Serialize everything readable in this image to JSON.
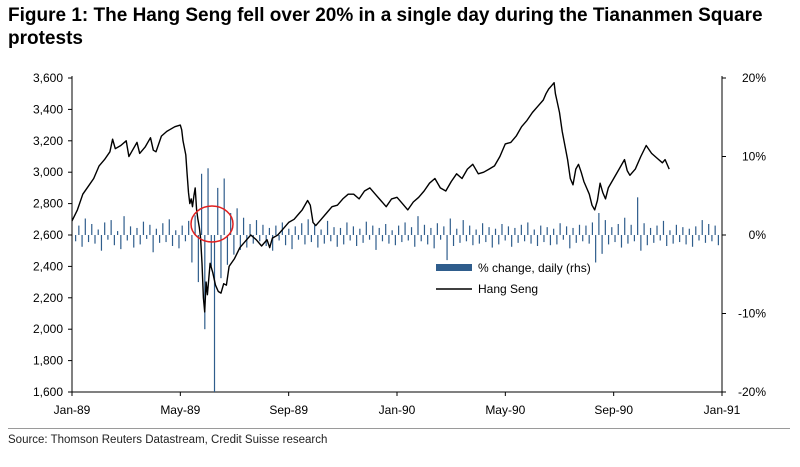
{
  "title": "Figure 1: The Hang Seng fell over 20% in a single day during the Tiananmen Square protests",
  "source": "Source: Thomson Reuters Datastream, Credit Suisse research",
  "colors": {
    "line": "#000000",
    "bars": "#2f5d8c",
    "highlight_circle": "#e02020"
  },
  "chart_data": {
    "type": "line",
    "x_tick_labels": [
      "Jan-89",
      "May-89",
      "Sep-89",
      "Jan-90",
      "May-90",
      "Sep-90",
      "Jan-91"
    ],
    "y_left": {
      "ticks": [
        "3,600",
        "3,400",
        "3,200",
        "3,000",
        "2,800",
        "2,600",
        "2,400",
        "2,200",
        "2,000",
        "1,800",
        "1,600"
      ],
      "range": [
        1600,
        3600
      ]
    },
    "y_right": {
      "ticks": [
        "20%",
        "10%",
        "0%",
        "-10%",
        "-20%"
      ],
      "range": [
        -20,
        20
      ]
    },
    "legend": {
      "bar_label": "% change, daily (rhs)",
      "line_label": "Hang Seng"
    },
    "series": [
      {
        "name": "Hang Seng",
        "axis": "left",
        "points": [
          [
            0.0,
            2690
          ],
          [
            0.2,
            2760
          ],
          [
            0.4,
            2860
          ],
          [
            0.6,
            2910
          ],
          [
            0.8,
            2960
          ],
          [
            1.0,
            3040
          ],
          [
            1.2,
            3080
          ],
          [
            1.4,
            3130
          ],
          [
            1.5,
            3210
          ],
          [
            1.6,
            3150
          ],
          [
            1.8,
            3170
          ],
          [
            2.0,
            3200
          ],
          [
            2.1,
            3100
          ],
          [
            2.2,
            3130
          ],
          [
            2.4,
            3190
          ],
          [
            2.5,
            3120
          ],
          [
            2.7,
            3160
          ],
          [
            2.9,
            3220
          ],
          [
            3.0,
            3140
          ],
          [
            3.1,
            3130
          ],
          [
            3.3,
            3230
          ],
          [
            3.5,
            3260
          ],
          [
            3.6,
            3270
          ],
          [
            3.8,
            3290
          ],
          [
            4.0,
            3300
          ],
          [
            4.05,
            3270
          ],
          [
            4.1,
            3200
          ],
          [
            4.2,
            3110
          ],
          [
            4.25,
            2990
          ],
          [
            4.3,
            2870
          ],
          [
            4.35,
            2800
          ],
          [
            4.4,
            2830
          ],
          [
            4.45,
            2780
          ],
          [
            4.5,
            2850
          ],
          [
            4.55,
            2900
          ],
          [
            4.6,
            2760
          ],
          [
            4.65,
            2700
          ],
          [
            4.7,
            2650
          ],
          [
            4.75,
            2580
          ],
          [
            4.8,
            2420
          ],
          [
            4.85,
            2200
          ],
          [
            4.9,
            2110
          ],
          [
            4.95,
            2300
          ],
          [
            5.0,
            2220
          ],
          [
            5.1,
            2420
          ],
          [
            5.2,
            2360
          ],
          [
            5.3,
            2280
          ],
          [
            5.4,
            2240
          ],
          [
            5.5,
            2230
          ],
          [
            5.6,
            2290
          ],
          [
            5.7,
            2280
          ],
          [
            5.8,
            2400
          ],
          [
            6.0,
            2450
          ],
          [
            6.2,
            2520
          ],
          [
            6.4,
            2560
          ],
          [
            6.6,
            2600
          ],
          [
            6.8,
            2570
          ],
          [
            7.0,
            2530
          ],
          [
            7.2,
            2570
          ],
          [
            7.3,
            2520
          ],
          [
            7.4,
            2580
          ],
          [
            7.6,
            2600
          ],
          [
            7.8,
            2640
          ],
          [
            8.0,
            2680
          ],
          [
            8.2,
            2700
          ],
          [
            8.4,
            2740
          ],
          [
            8.5,
            2760
          ],
          [
            8.7,
            2820
          ],
          [
            8.8,
            2790
          ],
          [
            8.9,
            2680
          ],
          [
            9.0,
            2660
          ],
          [
            9.2,
            2700
          ],
          [
            9.4,
            2740
          ],
          [
            9.6,
            2780
          ],
          [
            9.8,
            2790
          ],
          [
            10.0,
            2830
          ],
          [
            10.2,
            2860
          ],
          [
            10.4,
            2860
          ],
          [
            10.6,
            2830
          ],
          [
            10.8,
            2880
          ],
          [
            11.0,
            2900
          ],
          [
            11.2,
            2860
          ],
          [
            11.4,
            2820
          ],
          [
            11.6,
            2780
          ],
          [
            11.8,
            2830
          ],
          [
            12.0,
            2840
          ],
          [
            12.2,
            2800
          ],
          [
            12.4,
            2760
          ],
          [
            12.6,
            2810
          ],
          [
            12.8,
            2840
          ],
          [
            13.0,
            2880
          ],
          [
            13.2,
            2930
          ],
          [
            13.4,
            2960
          ],
          [
            13.6,
            2900
          ],
          [
            13.8,
            2880
          ],
          [
            14.0,
            2940
          ],
          [
            14.2,
            2990
          ],
          [
            14.4,
            2960
          ],
          [
            14.6,
            3020
          ],
          [
            14.8,
            3050
          ],
          [
            15.0,
            2990
          ],
          [
            15.2,
            3000
          ],
          [
            15.4,
            3020
          ],
          [
            15.6,
            3040
          ],
          [
            15.8,
            3100
          ],
          [
            16.0,
            3180
          ],
          [
            16.2,
            3190
          ],
          [
            16.4,
            3230
          ],
          [
            16.6,
            3290
          ],
          [
            16.8,
            3330
          ],
          [
            17.0,
            3380
          ],
          [
            17.2,
            3420
          ],
          [
            17.4,
            3460
          ],
          [
            17.5,
            3500
          ],
          [
            17.6,
            3530
          ],
          [
            17.7,
            3550
          ],
          [
            17.8,
            3570
          ],
          [
            17.85,
            3500
          ],
          [
            17.9,
            3460
          ],
          [
            18.0,
            3380
          ],
          [
            18.1,
            3260
          ],
          [
            18.2,
            3170
          ],
          [
            18.3,
            3080
          ],
          [
            18.4,
            2960
          ],
          [
            18.5,
            2920
          ],
          [
            18.6,
            3020
          ],
          [
            18.7,
            3050
          ],
          [
            18.8,
            3000
          ],
          [
            18.9,
            2940
          ],
          [
            19.0,
            2900
          ],
          [
            19.1,
            2860
          ],
          [
            19.2,
            2790
          ],
          [
            19.3,
            2760
          ],
          [
            19.4,
            2820
          ],
          [
            19.5,
            2930
          ],
          [
            19.6,
            2870
          ],
          [
            19.7,
            2830
          ],
          [
            19.8,
            2900
          ],
          [
            20.0,
            2960
          ],
          [
            20.2,
            3020
          ],
          [
            20.4,
            3080
          ],
          [
            20.5,
            3010
          ],
          [
            20.6,
            2980
          ],
          [
            20.8,
            3020
          ],
          [
            21.0,
            3100
          ],
          [
            21.2,
            3170
          ],
          [
            21.4,
            3120
          ],
          [
            21.6,
            3090
          ],
          [
            21.8,
            3060
          ],
          [
            21.9,
            3080
          ],
          [
            22.0,
            3040
          ],
          [
            22.05,
            3020
          ]
        ]
      },
      {
        "name": "% change, daily (rhs)",
        "axis": "right",
        "type": "bar",
        "values": [
          -0.8,
          1.2,
          -1.5,
          2.1,
          -0.9,
          1.4,
          -1.1,
          0.7,
          -2.0,
          1.6,
          -0.6,
          1.9,
          -1.3,
          0.5,
          -1.8,
          2.4,
          -0.7,
          1.1,
          -1.6,
          0.9,
          -1.2,
          1.7,
          -0.5,
          1.3,
          -2.2,
          0.8,
          -1.0,
          1.5,
          -0.9,
          2.0,
          -1.4,
          0.6,
          -1.7,
          1.2,
          -0.8,
          1.8,
          -3.5,
          2.5,
          -6.0,
          7.8,
          -12.0,
          8.5,
          -4.0,
          -21.8,
          6.0,
          -5.5,
          7.2,
          -3.8,
          2.8,
          -2.5,
          3.4,
          -1.9,
          2.2,
          -1.6,
          1.4,
          -1.1,
          1.9,
          -0.8,
          1.3,
          -1.4,
          0.9,
          -2.0,
          1.2,
          -0.7,
          1.6,
          -1.3,
          0.8,
          -1.8,
          1.1,
          -0.6,
          1.5,
          -1.2,
          2.0,
          -0.9,
          1.3,
          -1.6,
          0.7,
          -1.1,
          1.8,
          -0.8,
          1.0,
          -1.5,
          0.9,
          -1.2,
          1.6,
          -0.7,
          1.1,
          -1.4,
          0.8,
          -1.0,
          1.7,
          -0.6,
          1.2,
          -1.9,
          0.9,
          -0.8,
          1.4,
          -1.1,
          0.6,
          -1.3,
          1.2,
          -0.9,
          1.6,
          -0.7,
          1.0,
          -1.5,
          2.4,
          -0.8,
          1.3,
          -1.2,
          0.9,
          -1.7,
          1.5,
          -0.6,
          1.1,
          -3.2,
          2.1,
          -1.4,
          0.8,
          -1.0,
          1.9,
          -0.8,
          1.2,
          -1.3,
          0.7,
          -1.1,
          1.5,
          -0.9,
          1.0,
          -1.6,
          0.8,
          -1.2,
          1.4,
          -0.7,
          1.1,
          -1.5,
          0.9,
          -1.0,
          1.3,
          -0.8,
          1.6,
          -1.1,
          0.7,
          -1.4,
          1.2,
          -0.9,
          1.0,
          -1.3,
          0.8,
          -1.2,
          1.5,
          -0.6,
          1.1,
          -1.7,
          0.9,
          -1.0,
          1.3,
          -0.8,
          1.2,
          -1.1,
          1.6,
          -3.5,
          2.8,
          -2.4,
          1.9,
          -1.2,
          1.0,
          -0.9,
          1.4,
          -1.6,
          2.2,
          -1.1,
          1.3,
          -0.8,
          4.8,
          -2.0,
          1.5,
          -1.3,
          0.9,
          -1.0,
          1.2,
          -0.7,
          1.8,
          -1.4,
          0.6,
          -1.1,
          1.3,
          -0.9,
          1.0,
          -1.2,
          0.8,
          -1.5,
          1.1,
          -0.7,
          1.9,
          -1.0,
          1.4,
          -0.8,
          1.2,
          -1.3
        ]
      }
    ]
  }
}
